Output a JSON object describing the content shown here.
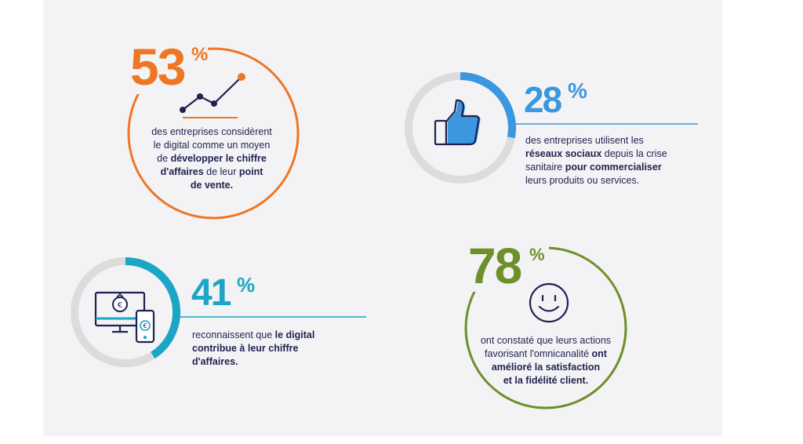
{
  "colors": {
    "orange": "#ee7624",
    "blue": "#3a97e0",
    "teal": "#1aa6c4",
    "green": "#6e8f2a",
    "navy": "#1f2150",
    "ring_gray": "#dcdcdc",
    "panel_bg": "#f3f3f5"
  },
  "stat1": {
    "number": "53",
    "percent": "%",
    "icon": "line-chart-icon",
    "text_1": "des entreprises considèrent",
    "text_2": "le digital comme un moyen",
    "text_3a": "de ",
    "text_3b": "développer le chiffre",
    "text_4a": "d'affaires",
    "text_4b": " de leur ",
    "text_4c": "point",
    "text_5": "de vente."
  },
  "stat2": {
    "number": "28",
    "percent": "%",
    "progress": 0.28,
    "icon": "thumbs-up-icon",
    "text_1": "des entreprises utilisent les",
    "text_2a": "réseaux sociaux",
    "text_2b": " depuis la crise",
    "text_3a": "sanitaire ",
    "text_3b": "pour commercialiser",
    "text_4": "leurs produits ou services."
  },
  "stat3": {
    "number": "41",
    "percent": "%",
    "progress": 0.41,
    "icon": "monitor-phone-euro-icon",
    "text_1a": "reconnaissent que ",
    "text_1b": "le digital",
    "text_2": "contribue à leur chiffre",
    "text_3": "d'affaires."
  },
  "stat4": {
    "number": "78",
    "percent": "%",
    "icon": "smiley-icon",
    "text_1": "ont constaté que leurs actions",
    "text_2a": "favorisant l'omnicanalité ",
    "text_2b": "ont",
    "text_3": "amélioré la satisfaction",
    "text_4": "et la fidélité client."
  }
}
